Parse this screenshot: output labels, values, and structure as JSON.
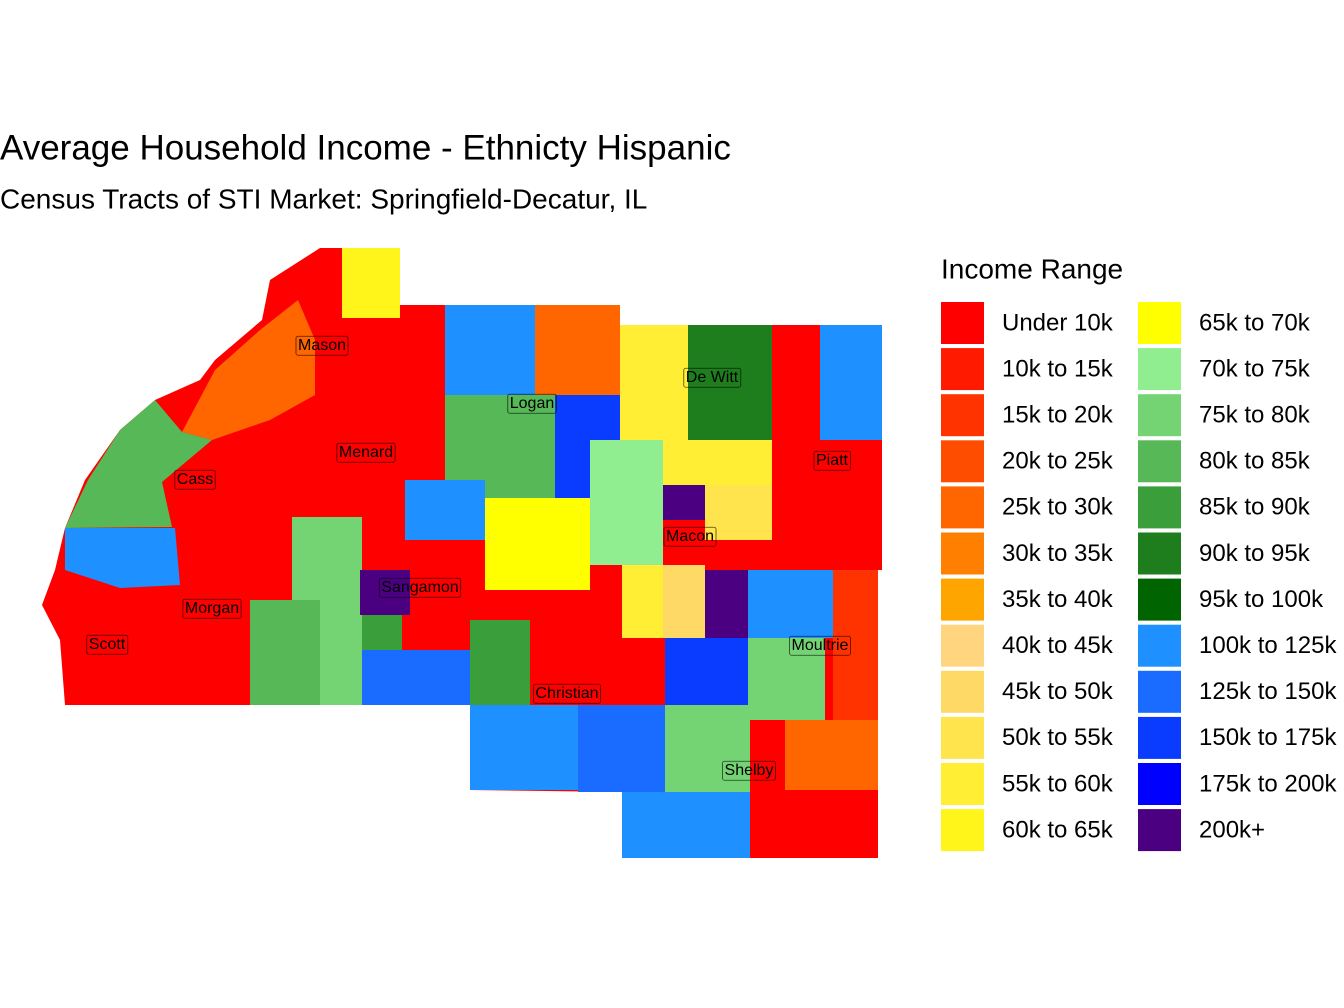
{
  "title": "Average Household Income - Ethnicty Hispanic",
  "subtitle": "Census Tracts of STI Market: Springfield-Decatur, IL",
  "legend": {
    "title": "Income Range",
    "items": [
      {
        "label": "Under 10k",
        "color": "#FF0000"
      },
      {
        "label": "10k to 15k",
        "color": "#FF1A00"
      },
      {
        "label": "15k to 20k",
        "color": "#FF3300"
      },
      {
        "label": "20k to 25k",
        "color": "#FF4D00"
      },
      {
        "label": "25k to 30k",
        "color": "#FF6600"
      },
      {
        "label": "30k to 35k",
        "color": "#FF8000"
      },
      {
        "label": "35k to 40k",
        "color": "#FFA500"
      },
      {
        "label": "40k to 45k",
        "color": "#FFD580"
      },
      {
        "label": "45k to 50k",
        "color": "#FFD966"
      },
      {
        "label": "50k to 55k",
        "color": "#FFE44D"
      },
      {
        "label": "55k to 60k",
        "color": "#FFEE33"
      },
      {
        "label": "60k to 65k",
        "color": "#FFF51A"
      },
      {
        "label": "65k to 70k",
        "color": "#FFFF00"
      },
      {
        "label": "70k to 75k",
        "color": "#90EE90"
      },
      {
        "label": "75k to 80k",
        "color": "#74D474"
      },
      {
        "label": "80k to 85k",
        "color": "#56B856"
      },
      {
        "label": "85k to 90k",
        "color": "#3A9E3A"
      },
      {
        "label": "90k to 95k",
        "color": "#1E7E1E"
      },
      {
        "label": "95k to 100k",
        "color": "#006400"
      },
      {
        "label": "100k to 125k",
        "color": "#1E90FF"
      },
      {
        "label": "125k to 150k",
        "color": "#1A6BFF"
      },
      {
        "label": "150k to 175k",
        "color": "#0A3CFF"
      },
      {
        "label": "175k to 200k",
        "color": "#0000FF"
      },
      {
        "label": "200k+",
        "color": "#4B0082"
      }
    ]
  },
  "counties": [
    "Mason",
    "Logan",
    "De Witt",
    "Menard",
    "Cass",
    "Piatt",
    "Macon",
    "Sangamon",
    "Morgan",
    "Scott",
    "Moultrie",
    "Christian",
    "Shelby"
  ]
}
